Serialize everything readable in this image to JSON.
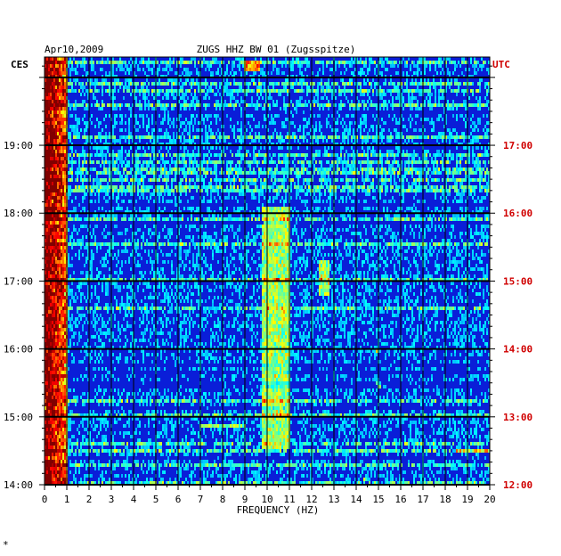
{
  "header": {
    "date": "Apr10,2009",
    "station": "ZUGS HHZ BW 01 (Zugsspitze)",
    "left_zone": "CES",
    "right_zone": "UTC"
  },
  "footer": {
    "corner_mark": "*"
  },
  "colors": {
    "utc_label": "#d00000",
    "grid": "#000000",
    "background_signal": "#0a1ed8"
  },
  "chart_data": {
    "type": "heatmap",
    "title": "ZUGS HHZ BW 01 (Zugsspitze)",
    "xlabel": "FREQUENCY (HZ)",
    "ylabel": "",
    "x_range": [
      0,
      20
    ],
    "x_ticks": [
      "0",
      "1",
      "2",
      "3",
      "4",
      "5",
      "6",
      "7",
      "8",
      "9",
      "10",
      "11",
      "12",
      "13",
      "14",
      "15",
      "16",
      "17",
      "18",
      "19",
      "20"
    ],
    "y_range_hours_local": [
      14.0,
      20.3
    ],
    "y_ticks_left": [
      {
        "hour": 19,
        "label": "19:00"
      },
      {
        "hour": 18,
        "label": "18:00"
      },
      {
        "hour": 17,
        "label": "17:00"
      },
      {
        "hour": 16,
        "label": "16:00"
      },
      {
        "hour": 15,
        "label": "15:00"
      },
      {
        "hour": 14,
        "label": "14:00"
      }
    ],
    "y_ticks_right": [
      {
        "hour": 19,
        "label": "17:00"
      },
      {
        "hour": 18,
        "label": "16:00"
      },
      {
        "hour": 17,
        "label": "15:00"
      },
      {
        "hour": 16,
        "label": "14:00"
      },
      {
        "hour": 15,
        "label": "13:00"
      },
      {
        "hour": 14,
        "label": "12:00"
      }
    ],
    "grid": true,
    "colormap": "jet",
    "energy_features": [
      {
        "freq": [
          0.0,
          1.0
        ],
        "hour": [
          14.0,
          20.3
        ],
        "intensity": "high"
      },
      {
        "freq": [
          9.8,
          11.0
        ],
        "hour": [
          14.5,
          18.1
        ],
        "intensity": "medium"
      },
      {
        "freq": [
          12.3,
          12.8
        ],
        "hour": [
          16.8,
          17.3
        ],
        "intensity": "medium"
      },
      {
        "freq": [
          7.0,
          9.0
        ],
        "hour": [
          14.85,
          14.9
        ],
        "intensity": "medium"
      },
      {
        "freq": [
          9.0,
          9.7
        ],
        "hour": [
          20.1,
          20.25
        ],
        "intensity": "high"
      },
      {
        "freq": [
          14.9,
          15.1
        ],
        "hour": [
          15.4,
          15.5
        ],
        "intensity": "medium"
      },
      {
        "freq": [
          14.9,
          15.0
        ],
        "hour": [
          15.95,
          16.0
        ],
        "intensity": "medium"
      },
      {
        "freq": [
          14.3,
          14.5
        ],
        "hour": [
          14.05,
          14.1
        ],
        "intensity": "medium"
      },
      {
        "freq": [
          18.5,
          20.0
        ],
        "hour": [
          14.45,
          14.5
        ],
        "intensity": "medium"
      }
    ]
  }
}
